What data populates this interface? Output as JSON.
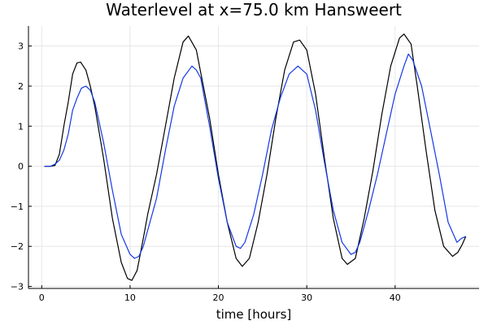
{
  "chart_data": {
    "type": "line",
    "title": "Waterlevel at x=75.0 km Hansweert",
    "xlabel": "time [hours]",
    "ylabel": "",
    "xlim": [
      -1.5,
      49.5
    ],
    "ylim": [
      -3.05,
      3.5
    ],
    "xticks": [
      0,
      10,
      20,
      30,
      40
    ],
    "yticks": [
      -3,
      -2,
      -1,
      0,
      1,
      2,
      3
    ],
    "xtick_labels": [
      "0",
      "10",
      "20",
      "30",
      "40"
    ],
    "ytick_labels": [
      "−3",
      "−2",
      "−1",
      "0",
      "1",
      "2",
      "3"
    ],
    "grid": true,
    "legend": "none",
    "series": [
      {
        "color": "#000000",
        "x": [
          0.3,
          1.0,
          1.5,
          2.0,
          2.5,
          3.0,
          3.5,
          4.0,
          4.4,
          5.0,
          5.5,
          6.0,
          7.0,
          8.0,
          9.0,
          9.7,
          10.2,
          10.8,
          11.5,
          12.0,
          13.0,
          14.0,
          15.0,
          16.0,
          16.6,
          17.5,
          19.0,
          20.0,
          21.0,
          22.0,
          22.7,
          23.5,
          24.5,
          25.5,
          26.5,
          27.5,
          28.5,
          29.2,
          30.0,
          31.0,
          32.0,
          33.0,
          34.0,
          34.6,
          35.5,
          36.5,
          37.5,
          38.5,
          39.5,
          40.5,
          41.0,
          41.8,
          42.5,
          43.5,
          44.5,
          45.5,
          46.5,
          47.1,
          47.6,
          48.0
        ],
        "values": [
          0,
          0,
          0.02,
          0.3,
          1.0,
          1.6,
          2.3,
          2.58,
          2.6,
          2.4,
          2.0,
          1.5,
          0.2,
          -1.3,
          -2.4,
          -2.8,
          -2.85,
          -2.6,
          -1.8,
          -1.2,
          -0.2,
          1.0,
          2.2,
          3.1,
          3.25,
          2.9,
          1.2,
          -0.2,
          -1.4,
          -2.3,
          -2.5,
          -2.3,
          -1.4,
          -0.2,
          1.2,
          2.4,
          3.1,
          3.15,
          2.9,
          1.8,
          0.2,
          -1.3,
          -2.3,
          -2.45,
          -2.3,
          -1.3,
          -0.1,
          1.3,
          2.5,
          3.2,
          3.3,
          3.05,
          2.0,
          0.4,
          -1.1,
          -2.0,
          -2.25,
          -2.15,
          -1.95,
          -1.75
        ]
      },
      {
        "color": "#1438e6",
        "x": [
          0.3,
          1.0,
          1.5,
          2.0,
          2.5,
          3.0,
          3.5,
          4.0,
          4.5,
          5.0,
          5.5,
          6.0,
          7.0,
          8.0,
          9.0,
          10.0,
          10.5,
          11.0,
          11.5,
          12.0,
          13.0,
          14.0,
          15.0,
          16.0,
          17.0,
          17.5,
          18.0,
          19.0,
          20.0,
          21.0,
          22.0,
          22.5,
          23.0,
          24.0,
          25.0,
          26.0,
          27.0,
          28.0,
          29.0,
          30.0,
          31.0,
          32.0,
          33.0,
          34.0,
          35.0,
          35.5,
          36.0,
          37.0,
          38.0,
          39.0,
          40.0,
          41.0,
          41.5,
          42.0,
          43.0,
          44.0,
          45.0,
          46.0,
          47.0,
          47.5,
          48.0
        ],
        "values": [
          0,
          0,
          0.05,
          0.15,
          0.4,
          0.8,
          1.4,
          1.7,
          1.95,
          2.0,
          1.9,
          1.6,
          0.6,
          -0.6,
          -1.7,
          -2.2,
          -2.3,
          -2.25,
          -2.0,
          -1.6,
          -0.8,
          0.4,
          1.5,
          2.2,
          2.5,
          2.4,
          2.2,
          1.0,
          -0.3,
          -1.4,
          -2.0,
          -2.05,
          -1.9,
          -1.2,
          -0.2,
          0.9,
          1.7,
          2.3,
          2.5,
          2.3,
          1.4,
          0.1,
          -1.1,
          -1.9,
          -2.2,
          -2.15,
          -1.9,
          -1.1,
          -0.2,
          0.8,
          1.8,
          2.5,
          2.8,
          2.65,
          2.0,
          0.9,
          -0.2,
          -1.4,
          -1.9,
          -1.8,
          -1.75
        ]
      }
    ]
  }
}
